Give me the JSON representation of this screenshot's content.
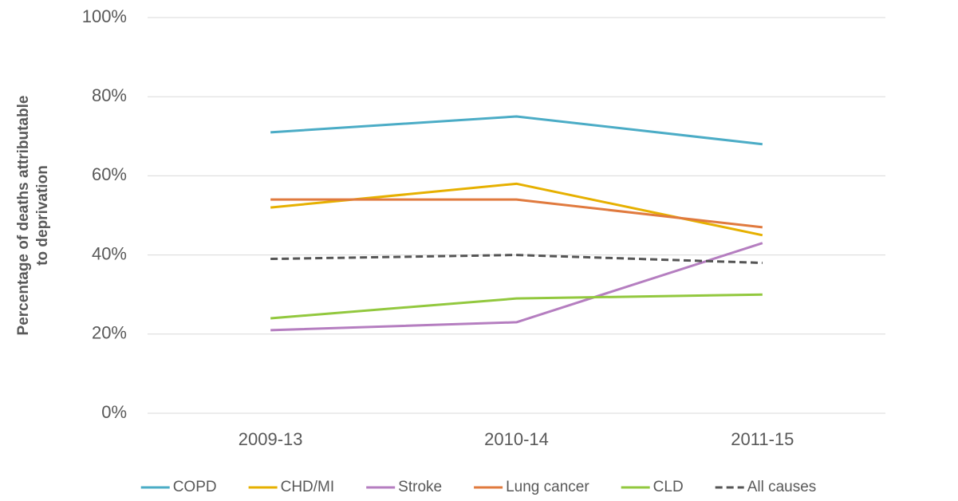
{
  "chart_data": {
    "type": "line",
    "y_label": [
      "Percentage of deaths attributable",
      "to deprivation"
    ],
    "categories": [
      "2009-13",
      "2010-14",
      "2011-15"
    ],
    "series": [
      {
        "name": "COPD",
        "color": "#4bacc6",
        "values": [
          71,
          75,
          68
        ]
      },
      {
        "name": "CHD/MI",
        "color": "#e6b000",
        "values": [
          52,
          58,
          45
        ]
      },
      {
        "name": "Stroke",
        "color": "#b57ec0",
        "values": [
          21,
          23,
          43
        ]
      },
      {
        "name": "Lung cancer",
        "color": "#e07a3e",
        "values": [
          54,
          54,
          47
        ]
      },
      {
        "name": "CLD",
        "color": "#92c83e",
        "values": [
          24,
          29,
          30
        ]
      },
      {
        "name": "All causes",
        "color": "#555555",
        "dashed": true,
        "values": [
          39,
          40,
          38
        ]
      }
    ],
    "ylim": [
      0,
      100
    ],
    "yticks": [
      {
        "value": 0,
        "label": "0%"
      },
      {
        "value": 20,
        "label": "20%"
      },
      {
        "value": 40,
        "label": "40%"
      },
      {
        "value": 60,
        "label": "60%"
      },
      {
        "value": 80,
        "label": "80%"
      },
      {
        "value": 100,
        "label": "100%"
      }
    ],
    "grid": true,
    "legend": "bottom"
  }
}
